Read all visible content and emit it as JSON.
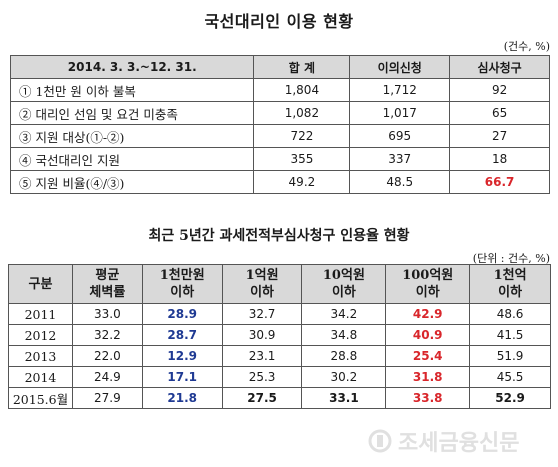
{
  "section1": {
    "title": "국선대리인 이용 현황",
    "unit": "(건수, %)",
    "headers": [
      "2014. 3. 3.~12. 31.",
      "합 계",
      "이의신청",
      "심사청구"
    ],
    "rows": [
      {
        "label": "① 1천만 원 이하 불복",
        "values": [
          "1,804",
          "1,712",
          "92"
        ]
      },
      {
        "label": "② 대리인 선임 및 요건 미충족",
        "values": [
          "1,082",
          "1,017",
          "65"
        ]
      },
      {
        "label": "③ 지원 대상(①-②)",
        "values": [
          "722",
          "695",
          "27"
        ]
      },
      {
        "label": "④ 국선대리인 지원",
        "values": [
          "355",
          "337",
          "18"
        ]
      },
      {
        "label": "⑤ 지원 비율(④/③)",
        "values": [
          "49.2",
          "48.5",
          "66.7"
        ]
      }
    ]
  },
  "section2": {
    "title": "최근 5년간 과세전적부심사청구 인용율 현황",
    "unit": "(단위 : 건수, %)",
    "headers": [
      {
        "line1": "구분",
        "line2": ""
      },
      {
        "line1": "평균",
        "line2": "체벽률"
      },
      {
        "line1": "1천만원",
        "line2": "이하"
      },
      {
        "line1": "1억원",
        "line2": "이하"
      },
      {
        "line1": "10억원",
        "line2": "이하"
      },
      {
        "line1": "100억원",
        "line2": "이하"
      },
      {
        "line1": "1천억",
        "line2": "이하"
      }
    ],
    "rows": [
      {
        "year": "2011",
        "values": [
          "33.0",
          "28.9",
          "32.7",
          "34.2",
          "42.9",
          "48.6"
        ]
      },
      {
        "year": "2012",
        "values": [
          "32.2",
          "28.7",
          "30.9",
          "34.8",
          "40.9",
          "41.5"
        ]
      },
      {
        "year": "2013",
        "values": [
          "22.0",
          "12.9",
          "23.1",
          "28.8",
          "25.4",
          "51.9"
        ]
      },
      {
        "year": "2014",
        "values": [
          "24.9",
          "17.1",
          "25.3",
          "30.2",
          "31.8",
          "45.5"
        ]
      },
      {
        "year": "2015.6월",
        "values": [
          "27.9",
          "21.8",
          "27.5",
          "33.1",
          "33.8",
          "52.9"
        ]
      }
    ]
  },
  "watermark": {
    "text": "조세금융신문"
  },
  "colors": {
    "header_bg": "#d9d9d9",
    "highlight_red": "#d9262b",
    "highlight_blue": "#1f3a93"
  }
}
